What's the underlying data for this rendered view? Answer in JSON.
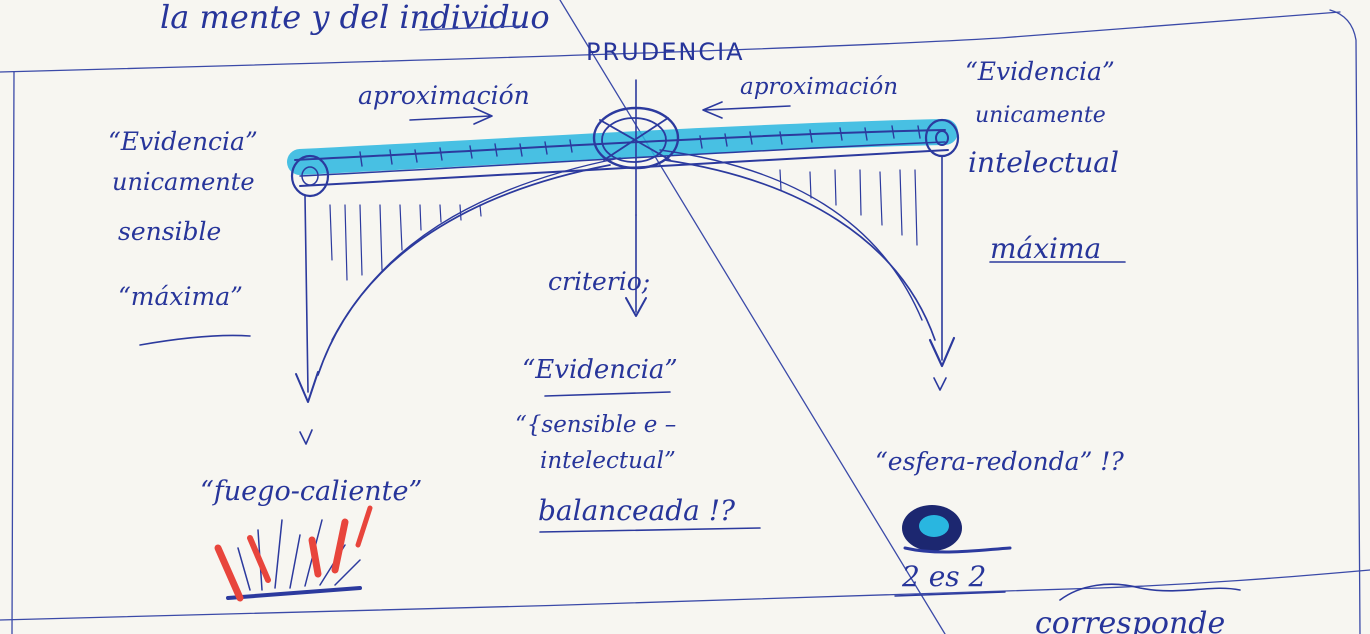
{
  "header_text": "la mente y del individuo",
  "top_label": "PRUDENCIA",
  "approach_left": "aproximación",
  "approach_right": "aproximación",
  "left_label": [
    "“Evidencia”",
    "unicamente",
    "sensible",
    "“máxima”"
  ],
  "right_label": [
    "“Evidencia”",
    "unicamente",
    "intelectual",
    "máxima"
  ],
  "center_label": [
    "criterio;",
    "“Evidencia”",
    "“{sensible e –",
    "intelectual”",
    "balanceada !?"
  ],
  "left_result": "“fuego-caliente”",
  "right_result": "“esfera-redonda” !?",
  "right_caption": "2 es 2",
  "bottom_text": "corresponde",
  "colors": {
    "ink": "#2c3a9e",
    "highlight": "#29b6e0",
    "fire": "#e8453c",
    "paper": "#f7f6f1"
  }
}
